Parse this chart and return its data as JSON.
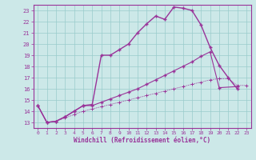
{
  "bg_color": "#cce8e8",
  "line_color": "#993399",
  "grid_color": "#99cccc",
  "xlim": [
    -0.5,
    23.5
  ],
  "ylim": [
    12.5,
    23.5
  ],
  "xticks": [
    0,
    1,
    2,
    3,
    4,
    5,
    6,
    7,
    8,
    9,
    10,
    11,
    12,
    13,
    14,
    15,
    16,
    17,
    18,
    19,
    20,
    21,
    22,
    23
  ],
  "yticks": [
    13,
    14,
    15,
    16,
    17,
    18,
    19,
    20,
    21,
    22,
    23
  ],
  "xlabel": "Windchill (Refroidissement éolien,°C)",
  "line1_x": [
    0,
    1,
    2,
    3,
    4,
    5,
    6,
    7,
    8,
    9,
    10,
    11,
    12,
    13,
    14,
    15,
    16,
    17,
    18,
    19,
    20,
    21,
    22
  ],
  "line1_y": [
    14.5,
    13.0,
    13.1,
    13.5,
    14.0,
    14.5,
    14.6,
    19.0,
    19.0,
    19.5,
    20.0,
    21.0,
    21.8,
    22.5,
    22.2,
    23.3,
    23.2,
    23.0,
    21.7,
    19.7,
    18.1,
    17.0,
    16.0
  ],
  "line2_x": [
    0,
    1,
    2,
    3,
    4,
    5,
    6,
    7,
    8,
    9,
    10,
    11,
    12,
    13,
    14,
    15,
    16,
    17,
    18,
    19,
    20,
    22
  ],
  "line2_y": [
    14.5,
    13.0,
    13.1,
    13.5,
    14.0,
    14.5,
    14.5,
    14.8,
    15.1,
    15.4,
    15.7,
    16.0,
    16.4,
    16.8,
    17.2,
    17.6,
    18.0,
    18.4,
    18.9,
    19.3,
    16.1,
    16.2
  ],
  "line3_x": [
    0,
    1,
    2,
    3,
    4,
    5,
    6,
    7,
    8,
    9,
    10,
    11,
    12,
    13,
    14,
    15,
    16,
    17,
    18,
    19,
    20,
    21,
    22,
    23
  ],
  "line3_y": [
    14.5,
    13.0,
    13.1,
    13.4,
    13.7,
    14.0,
    14.2,
    14.4,
    14.6,
    14.8,
    15.0,
    15.2,
    15.4,
    15.6,
    15.8,
    16.0,
    16.2,
    16.4,
    16.6,
    16.8,
    16.9,
    16.9,
    16.3,
    16.3
  ]
}
